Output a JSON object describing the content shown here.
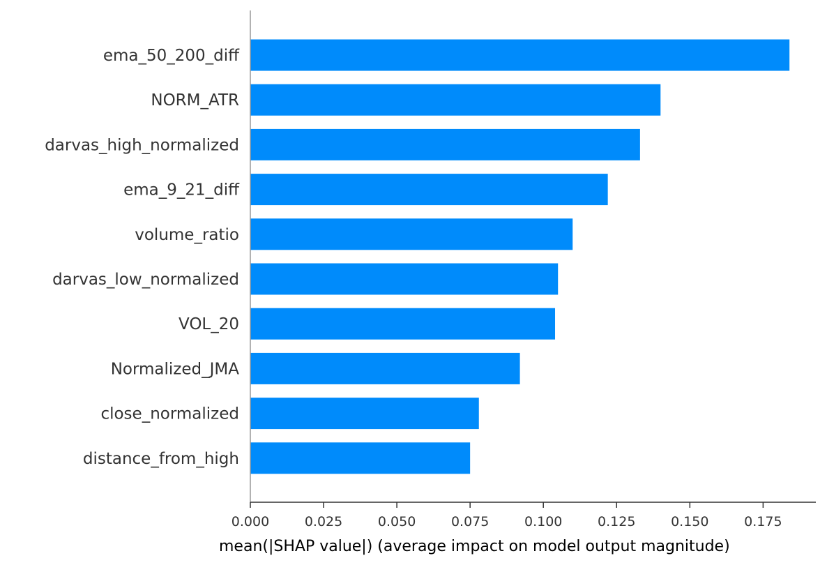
{
  "chart_data": {
    "type": "bar",
    "orientation": "horizontal",
    "title": "",
    "xlabel": "mean(|SHAP value|) (average impact on model output magnitude)",
    "ylabel": "",
    "xlim": [
      0,
      0.193
    ],
    "x_ticks": [
      "0.000",
      "0.025",
      "0.050",
      "0.075",
      "0.100",
      "0.125",
      "0.150",
      "0.175"
    ],
    "grid": false,
    "legend": "none",
    "bar_color": "#008bfb",
    "categories": [
      "ema_50_200_diff",
      "NORM_ATR",
      "darvas_high_normalized",
      "ema_9_21_diff",
      "volume_ratio",
      "darvas_low_normalized",
      "VOL_20",
      "Normalized_JMA",
      "close_normalized",
      "distance_from_high"
    ],
    "values": [
      0.184,
      0.14,
      0.133,
      0.122,
      0.11,
      0.105,
      0.104,
      0.092,
      0.078,
      0.075
    ]
  }
}
